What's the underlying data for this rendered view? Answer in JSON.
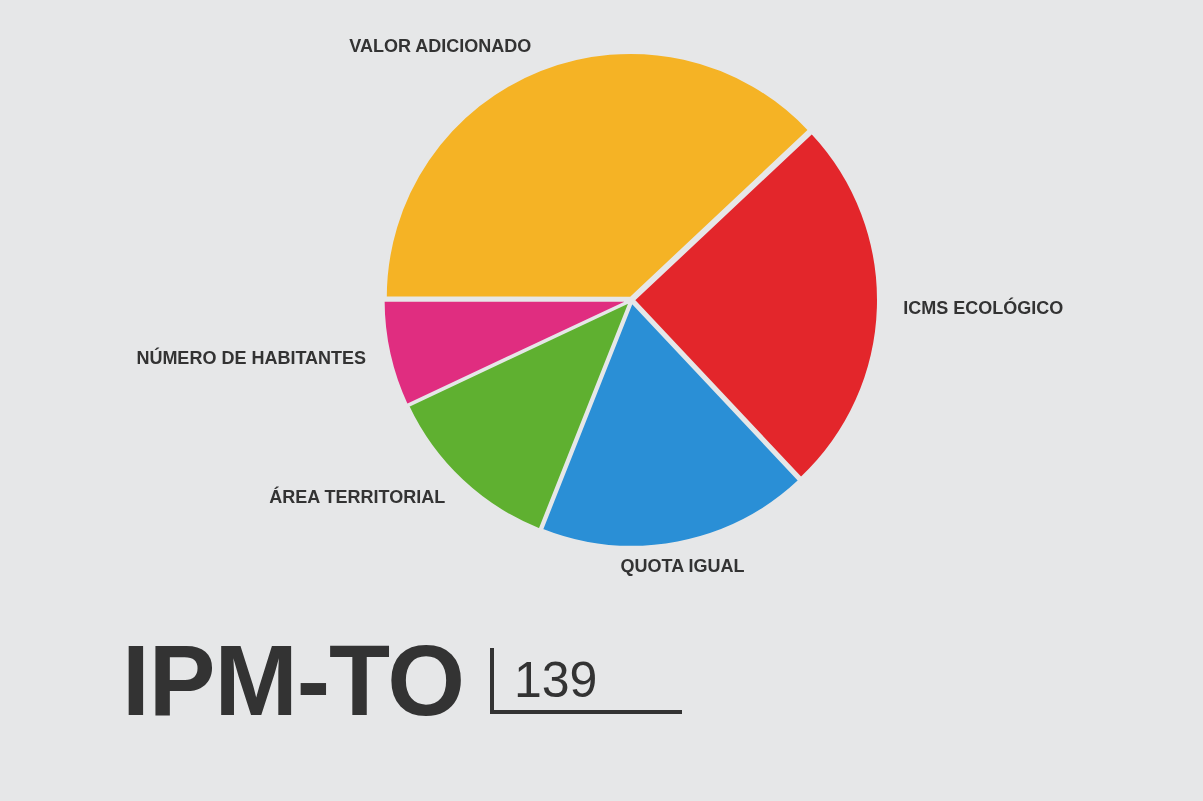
{
  "chart_data": {
    "type": "pie",
    "title": "IPM-TO",
    "subtitle": "139",
    "categories": [
      "VALOR ADICIONADO",
      "ICMS ECOLÓGICO",
      "QUOTA IGUAL",
      "ÁREA TERRITORIAL",
      "NÚMERO DE HABITANTES"
    ],
    "values": [
      38,
      25,
      18,
      12,
      7
    ],
    "colors": [
      "#f5b325",
      "#e3262b",
      "#2a8fd6",
      "#5fb030",
      "#e02d80"
    ]
  }
}
